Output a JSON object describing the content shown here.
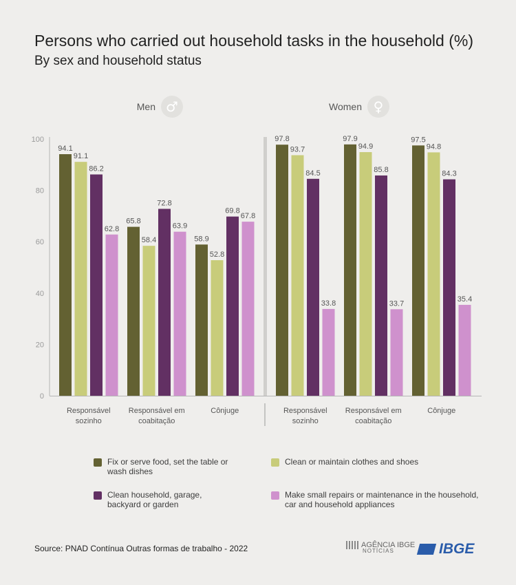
{
  "title": "Persons who carried out household tasks in the household (%)",
  "subtitle": "By sex and household status",
  "colors": {
    "fix": "#636132",
    "clean_clothes": "#c8cc7a",
    "clean_household": "#623063",
    "repairs": "#cf91cd",
    "axis": "#b5b5b5",
    "divider": "#d0cfcc"
  },
  "panels": [
    {
      "label": "Men",
      "icon": "male-symbol-icon",
      "glyph": "♂"
    },
    {
      "label": "Women",
      "icon": "female-symbol-icon",
      "glyph": "♀"
    }
  ],
  "chart_data": {
    "type": "bar",
    "ylim": [
      0,
      100
    ],
    "yticks": [
      0,
      20,
      40,
      60,
      80,
      100
    ],
    "categories": [
      "Responsável sozinho",
      "Responsável em coabitação",
      "Cônjuge"
    ],
    "category_lines": [
      [
        "Responsável",
        "sozinho"
      ],
      [
        "Responsável em",
        "coabitação"
      ],
      [
        "Cônjuge"
      ]
    ],
    "series_names": [
      "Fix or serve food, set the table or wash dishes",
      "Clean or maintain clothes and shoes",
      "Clean household, garage, backyard or garden",
      "Make small repairs or maintenance in the household, car and household appliances"
    ],
    "groups": [
      {
        "panel": "Men",
        "series": [
          {
            "name": "Fix or serve food, set the table or wash dishes",
            "values": [
              94.1,
              65.8,
              58.9
            ]
          },
          {
            "name": "Clean or maintain clothes and shoes",
            "values": [
              91.1,
              58.4,
              52.8
            ]
          },
          {
            "name": "Clean household, garage, backyard or garden",
            "values": [
              86.2,
              72.8,
              69.8
            ]
          },
          {
            "name": "Make small repairs or maintenance in the household, car and household appliances",
            "values": [
              62.8,
              63.9,
              67.8
            ]
          }
        ]
      },
      {
        "panel": "Women",
        "series": [
          {
            "name": "Fix or serve food, set the table or wash dishes",
            "values": [
              97.8,
              97.9,
              97.5
            ]
          },
          {
            "name": "Clean or maintain clothes and shoes",
            "values": [
              93.7,
              94.9,
              94.8
            ]
          },
          {
            "name": "Clean household, garage, backyard or garden",
            "values": [
              84.5,
              85.8,
              84.3
            ]
          },
          {
            "name": "Make small repairs or maintenance in the household, car and household appliances",
            "values": [
              33.8,
              33.7,
              35.4
            ]
          }
        ]
      }
    ]
  },
  "legend": [
    {
      "lines": [
        "Fix or serve food, set the table or",
        "wash dishes"
      ],
      "color_key": "fix"
    },
    {
      "lines": [
        "Clean or maintain clothes and shoes"
      ],
      "color_key": "clean_clothes"
    },
    {
      "lines": [
        "Clean household, garage,",
        "backyard or garden"
      ],
      "color_key": "clean_household"
    },
    {
      "lines": [
        "Make small repairs or maintenance in the household,",
        "car and household appliances"
      ],
      "color_key": "repairs"
    }
  ],
  "source": "Source: PNAD Contínua Outras formas de trabalho - 2022",
  "logos": {
    "agencia": "AGÊNCIA IBGE",
    "agencia_sub": "NOTÍCIAS",
    "ibge": "IBGE"
  }
}
